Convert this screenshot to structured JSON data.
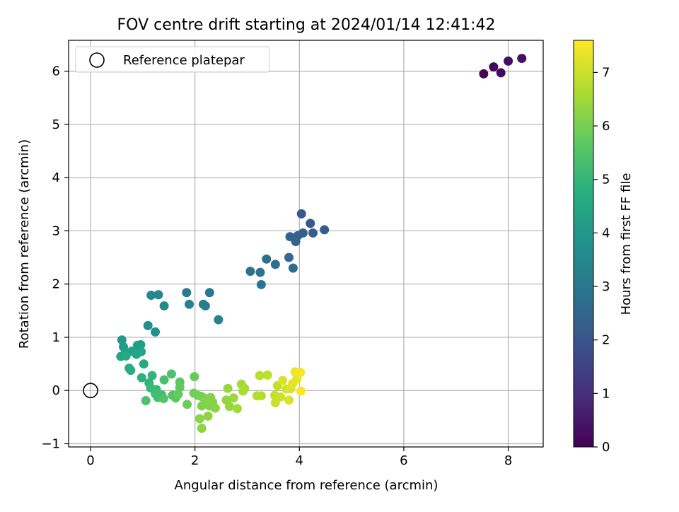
{
  "chart_data": {
    "type": "scatter",
    "title": "FOV centre drift starting at 2024/01/14 12:41:42",
    "xlabel": "Angular distance from reference (arcmin)",
    "ylabel": "Rotation from reference (arcmin)",
    "xlim": [
      -0.42,
      8.67
    ],
    "ylim": [
      -1.06,
      6.58
    ],
    "xticks": [
      0,
      2,
      4,
      6,
      8
    ],
    "xtick_labels": [
      "0",
      "2",
      "4",
      "6",
      "8"
    ],
    "yticks": [
      -1,
      0,
      1,
      2,
      3,
      4,
      5,
      6
    ],
    "ytick_labels": [
      "−1",
      "0",
      "1",
      "2",
      "3",
      "4",
      "5",
      "6"
    ],
    "grid": true,
    "legend": {
      "placement": "top-left",
      "entries": [
        "Reference platepar"
      ]
    },
    "colorbar": {
      "label": "Hours from first FF file",
      "range": [
        0,
        7.6
      ],
      "ticks": [
        0,
        1,
        2,
        3,
        4,
        5,
        6,
        7
      ],
      "tick_labels": [
        "0",
        "1",
        "2",
        "3",
        "4",
        "5",
        "6",
        "7"
      ],
      "colormap": "viridis"
    },
    "reference_point": {
      "x": 0,
      "y": 0
    },
    "points": [
      {
        "x": 7.53,
        "y": 5.95,
        "t": 0.05
      },
      {
        "x": 7.72,
        "y": 6.08,
        "t": 0.12
      },
      {
        "x": 7.86,
        "y": 5.97,
        "t": 0.2
      },
      {
        "x": 8.0,
        "y": 6.19,
        "t": 0.28
      },
      {
        "x": 8.26,
        "y": 6.24,
        "t": 0.35
      },
      {
        "x": 4.04,
        "y": 3.32,
        "t": 2.1
      },
      {
        "x": 4.21,
        "y": 3.14,
        "t": 2.15
      },
      {
        "x": 4.48,
        "y": 3.02,
        "t": 2.2
      },
      {
        "x": 4.26,
        "y": 2.96,
        "t": 2.25
      },
      {
        "x": 4.07,
        "y": 2.96,
        "t": 2.3
      },
      {
        "x": 3.97,
        "y": 2.91,
        "t": 2.35
      },
      {
        "x": 3.82,
        "y": 2.89,
        "t": 2.4
      },
      {
        "x": 3.93,
        "y": 2.8,
        "t": 2.45
      },
      {
        "x": 3.8,
        "y": 2.5,
        "t": 2.6
      },
      {
        "x": 3.88,
        "y": 2.3,
        "t": 2.65
      },
      {
        "x": 3.37,
        "y": 2.47,
        "t": 2.75
      },
      {
        "x": 3.54,
        "y": 2.37,
        "t": 2.8
      },
      {
        "x": 3.06,
        "y": 2.24,
        "t": 2.9
      },
      {
        "x": 3.25,
        "y": 2.22,
        "t": 2.95
      },
      {
        "x": 3.27,
        "y": 1.99,
        "t": 3.0
      },
      {
        "x": 2.28,
        "y": 1.84,
        "t": 3.1
      },
      {
        "x": 1.84,
        "y": 1.84,
        "t": 3.15
      },
      {
        "x": 2.16,
        "y": 1.62,
        "t": 3.2
      },
      {
        "x": 2.2,
        "y": 1.59,
        "t": 3.25
      },
      {
        "x": 1.89,
        "y": 1.62,
        "t": 3.3
      },
      {
        "x": 2.45,
        "y": 1.33,
        "t": 3.4
      },
      {
        "x": 1.3,
        "y": 1.8,
        "t": 3.55
      },
      {
        "x": 1.16,
        "y": 1.79,
        "t": 3.6
      },
      {
        "x": 1.41,
        "y": 1.59,
        "t": 3.65
      },
      {
        "x": 1.1,
        "y": 1.22,
        "t": 3.75
      },
      {
        "x": 1.24,
        "y": 1.1,
        "t": 3.8
      },
      {
        "x": 0.6,
        "y": 0.95,
        "t": 4.1
      },
      {
        "x": 0.63,
        "y": 0.82,
        "t": 4.15
      },
      {
        "x": 0.9,
        "y": 0.85,
        "t": 4.2
      },
      {
        "x": 0.96,
        "y": 0.86,
        "t": 4.25
      },
      {
        "x": 0.67,
        "y": 0.72,
        "t": 4.3
      },
      {
        "x": 0.79,
        "y": 0.74,
        "t": 4.35
      },
      {
        "x": 0.97,
        "y": 0.73,
        "t": 4.4
      },
      {
        "x": 0.88,
        "y": 0.68,
        "t": 4.45
      },
      {
        "x": 0.58,
        "y": 0.64,
        "t": 4.5
      },
      {
        "x": 0.68,
        "y": 0.65,
        "t": 4.55
      },
      {
        "x": 1.02,
        "y": 0.5,
        "t": 4.6
      },
      {
        "x": 0.74,
        "y": 0.42,
        "t": 4.65
      },
      {
        "x": 0.77,
        "y": 0.38,
        "t": 4.7
      },
      {
        "x": 0.98,
        "y": 0.24,
        "t": 4.8
      },
      {
        "x": 1.12,
        "y": 0.14,
        "t": 4.9
      },
      {
        "x": 1.18,
        "y": 0.28,
        "t": 4.95
      },
      {
        "x": 1.15,
        "y": 0.05,
        "t": 5.1
      },
      {
        "x": 1.26,
        "y": 0.02,
        "t": 5.15
      },
      {
        "x": 1.24,
        "y": -0.06,
        "t": 5.2
      },
      {
        "x": 1.36,
        "y": -0.08,
        "t": 5.25
      },
      {
        "x": 1.29,
        "y": -0.13,
        "t": 5.3
      },
      {
        "x": 1.41,
        "y": 0.2,
        "t": 5.35
      },
      {
        "x": 1.55,
        "y": 0.31,
        "t": 5.4
      },
      {
        "x": 1.06,
        "y": -0.19,
        "t": 5.45
      },
      {
        "x": 1.4,
        "y": -0.15,
        "t": 5.5
      },
      {
        "x": 1.57,
        "y": -0.09,
        "t": 5.55
      },
      {
        "x": 1.63,
        "y": -0.14,
        "t": 5.6
      },
      {
        "x": 1.71,
        "y": 0.16,
        "t": 5.65
      },
      {
        "x": 1.71,
        "y": 0.06,
        "t": 5.7
      },
      {
        "x": 1.68,
        "y": -0.07,
        "t": 5.75
      },
      {
        "x": 1.99,
        "y": 0.26,
        "t": 5.8
      },
      {
        "x": 1.85,
        "y": -0.26,
        "t": 5.85
      },
      {
        "x": 1.98,
        "y": -0.05,
        "t": 5.9
      },
      {
        "x": 2.05,
        "y": -0.09,
        "t": 5.95
      },
      {
        "x": 2.12,
        "y": -0.11,
        "t": 6.0
      },
      {
        "x": 2.17,
        "y": -0.14,
        "t": 6.05
      },
      {
        "x": 2.21,
        "y": -0.19,
        "t": 6.1
      },
      {
        "x": 2.13,
        "y": -0.29,
        "t": 6.12
      },
      {
        "x": 2.28,
        "y": -0.29,
        "t": 6.15
      },
      {
        "x": 2.34,
        "y": -0.22,
        "t": 6.18
      },
      {
        "x": 2.3,
        "y": -0.13,
        "t": 6.2
      },
      {
        "x": 2.39,
        "y": -0.33,
        "t": 6.22
      },
      {
        "x": 2.09,
        "y": -0.53,
        "t": 6.25
      },
      {
        "x": 2.25,
        "y": -0.48,
        "t": 6.28
      },
      {
        "x": 2.13,
        "y": -0.71,
        "t": 6.3
      },
      {
        "x": 2.6,
        "y": -0.18,
        "t": 6.35
      },
      {
        "x": 2.66,
        "y": -0.3,
        "t": 6.38
      },
      {
        "x": 2.63,
        "y": 0.04,
        "t": 6.4
      },
      {
        "x": 2.74,
        "y": -0.14,
        "t": 6.45
      },
      {
        "x": 2.81,
        "y": -0.34,
        "t": 6.5
      },
      {
        "x": 2.89,
        "y": 0.12,
        "t": 6.55
      },
      {
        "x": 2.95,
        "y": 0.04,
        "t": 6.6
      },
      {
        "x": 2.92,
        "y": -0.01,
        "t": 6.65
      },
      {
        "x": 3.19,
        "y": -0.1,
        "t": 6.7
      },
      {
        "x": 3.27,
        "y": -0.1,
        "t": 6.75
      },
      {
        "x": 3.24,
        "y": 0.28,
        "t": 6.8
      },
      {
        "x": 3.39,
        "y": 0.29,
        "t": 6.85
      },
      {
        "x": 3.58,
        "y": 0.09,
        "t": 6.9
      },
      {
        "x": 3.53,
        "y": -0.09,
        "t": 6.95
      },
      {
        "x": 3.54,
        "y": -0.23,
        "t": 7.0
      },
      {
        "x": 3.64,
        "y": -0.12,
        "t": 7.05
      },
      {
        "x": 3.75,
        "y": 0.03,
        "t": 7.1
      },
      {
        "x": 3.8,
        "y": -0.18,
        "t": 7.15
      },
      {
        "x": 3.68,
        "y": 0.19,
        "t": 7.2
      },
      {
        "x": 3.83,
        "y": 0.03,
        "t": 7.25
      },
      {
        "x": 3.87,
        "y": 0.13,
        "t": 7.3
      },
      {
        "x": 3.95,
        "y": 0.21,
        "t": 7.35
      },
      {
        "x": 3.92,
        "y": 0.35,
        "t": 7.4
      },
      {
        "x": 3.99,
        "y": 0.33,
        "t": 7.45
      },
      {
        "x": 4.02,
        "y": 0.34,
        "t": 7.5
      },
      {
        "x": 4.03,
        "y": -0.01,
        "t": 7.55
      }
    ]
  }
}
